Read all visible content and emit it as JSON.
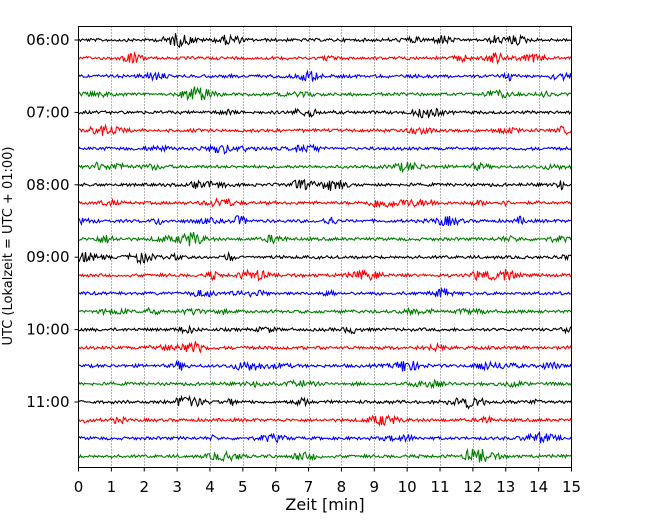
{
  "chart_data": {
    "type": "line",
    "subtype": "helicorder",
    "xlabel": "Zeit  [min]",
    "ylabel": "UTC (Lokalzeit = UTC + 01:00)",
    "xlim": [
      0,
      15
    ],
    "x_ticks": [
      0,
      1,
      2,
      3,
      4,
      5,
      6,
      7,
      8,
      9,
      10,
      11,
      12,
      13,
      14,
      15
    ],
    "x_tick_labels": [
      "0",
      "1",
      "2",
      "3",
      "4",
      "5",
      "6",
      "7",
      "8",
      "9",
      "10",
      "11",
      "12",
      "13",
      "14",
      "15"
    ],
    "y_tick_labels": [
      "06:00",
      "07:00",
      "08:00",
      "09:00",
      "10:00",
      "11:00"
    ],
    "grid": {
      "x": true,
      "style": "dotted"
    },
    "trace_minutes": 15,
    "trace_count": 24,
    "trace_colors": [
      "#000000",
      "#ff0000",
      "#0000ff",
      "#007f00"
    ],
    "trace_start_times": [
      "06:00",
      "06:15",
      "06:30",
      "06:45",
      "07:00",
      "07:15",
      "07:30",
      "07:45",
      "08:00",
      "08:15",
      "08:30",
      "08:45",
      "09:00",
      "09:15",
      "09:30",
      "09:45",
      "10:00",
      "10:15",
      "10:30",
      "10:45",
      "11:00",
      "11:15",
      "11:30",
      "11:45"
    ]
  }
}
